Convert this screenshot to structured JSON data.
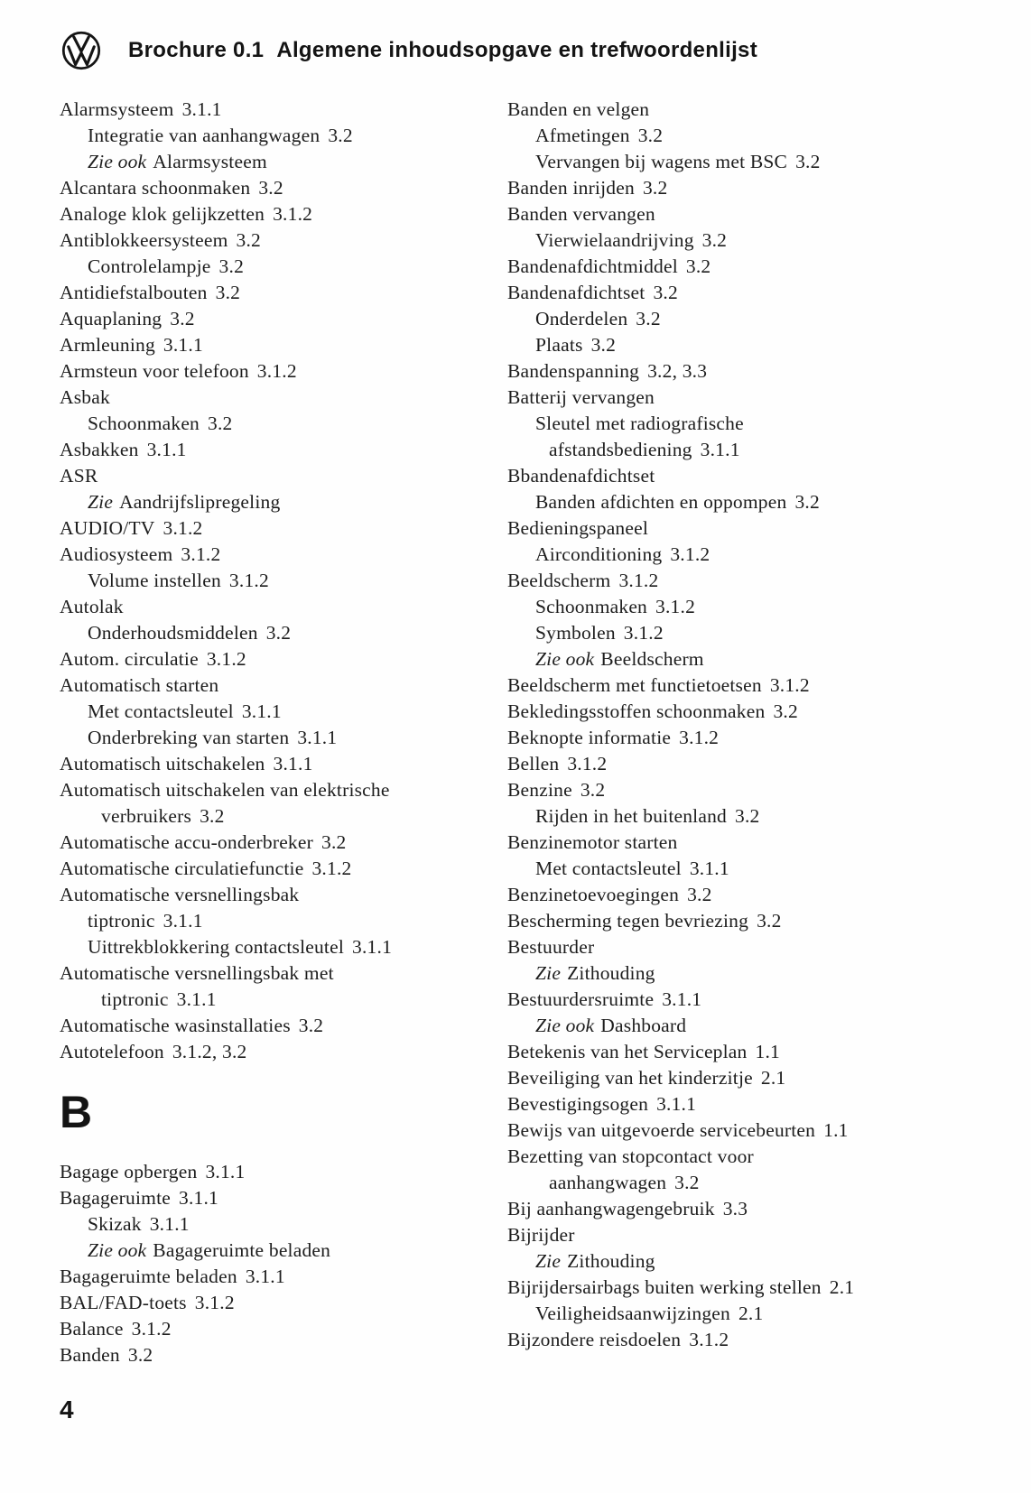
{
  "header": {
    "brochure_label": "Brochure 0.1",
    "title": "Algemene inhoudsopgave en trefwoordenlijst"
  },
  "page_number": "4",
  "index": {
    "columns": [
      {
        "lines": [
          {
            "text": "Alarmsysteem",
            "ref": "3.1.1",
            "indent": 0
          },
          {
            "text": "Integratie van aanhangwagen",
            "ref": "3.2",
            "indent": 1
          },
          {
            "prefix": "Zie ook",
            "text": "Alarmsysteem",
            "indent": 1
          },
          {
            "text": "Alcantara schoonmaken",
            "ref": "3.2",
            "indent": 0
          },
          {
            "text": "Analoge klok gelijkzetten",
            "ref": "3.1.2",
            "indent": 0
          },
          {
            "text": "Antiblokkeersysteem",
            "ref": "3.2",
            "indent": 0
          },
          {
            "text": "Controlelampje",
            "ref": "3.2",
            "indent": 1
          },
          {
            "text": "Antidiefstalbouten",
            "ref": "3.2",
            "indent": 0
          },
          {
            "text": "Aquaplaning",
            "ref": "3.2",
            "indent": 0
          },
          {
            "text": "Armleuning",
            "ref": "3.1.1",
            "indent": 0
          },
          {
            "text": "Armsteun voor telefoon",
            "ref": "3.1.2",
            "indent": 0
          },
          {
            "text": "Asbak",
            "indent": 0
          },
          {
            "text": "Schoonmaken",
            "ref": "3.2",
            "indent": 1
          },
          {
            "text": "Asbakken",
            "ref": "3.1.1",
            "indent": 0
          },
          {
            "text": "ASR",
            "indent": 0
          },
          {
            "prefix": "Zie",
            "text": "Aandrijfslipregeling",
            "indent": 1
          },
          {
            "text": "AUDIO/TV",
            "ref": "3.1.2",
            "indent": 0
          },
          {
            "text": "Audiosysteem",
            "ref": "3.1.2",
            "indent": 0
          },
          {
            "text": "Volume instellen",
            "ref": "3.1.2",
            "indent": 1
          },
          {
            "text": "Autolak",
            "indent": 0
          },
          {
            "text": "Onderhoudsmiddelen",
            "ref": "3.2",
            "indent": 1
          },
          {
            "text": "Autom. circulatie",
            "ref": "3.1.2",
            "indent": 0
          },
          {
            "text": "Automatisch starten",
            "indent": 0
          },
          {
            "text": "Met contactsleutel",
            "ref": "3.1.1",
            "indent": 1
          },
          {
            "text": "Onderbreking van starten",
            "ref": "3.1.1",
            "indent": 1
          },
          {
            "text": "Automatisch uitschakelen",
            "ref": "3.1.1",
            "indent": 0
          },
          {
            "text": "Automatisch uitschakelen van elektrische",
            "indent": 0
          },
          {
            "text": "verbruikers",
            "ref": "3.2",
            "indent": 2
          },
          {
            "text": "Automatische accu-onderbreker",
            "ref": "3.2",
            "indent": 0
          },
          {
            "text": "Automatische circulatiefunctie",
            "ref": "3.1.2",
            "indent": 0
          },
          {
            "text": "Automatische versnellingsbak",
            "indent": 0
          },
          {
            "text": "tiptronic",
            "ref": "3.1.1",
            "indent": 1
          },
          {
            "text": "Uittrekblokkering contactsleutel",
            "ref": "3.1.1",
            "indent": 1
          },
          {
            "text": "Automatische versnellingsbak met",
            "indent": 0
          },
          {
            "text": "tiptronic",
            "ref": "3.1.1",
            "indent": 2
          },
          {
            "text": "Automatische wasinstallaties",
            "ref": "3.2",
            "indent": 0
          },
          {
            "text": "Autotelefoon",
            "ref": "3.1.2, 3.2",
            "indent": 0
          },
          {
            "section": "B"
          },
          {
            "text": "Bagage opbergen",
            "ref": "3.1.1",
            "indent": 0
          },
          {
            "text": "Bagageruimte",
            "ref": "3.1.1",
            "indent": 0
          },
          {
            "text": "Skizak",
            "ref": "3.1.1",
            "indent": 1
          },
          {
            "prefix": "Zie ook",
            "text": "Bagageruimte beladen",
            "indent": 1
          },
          {
            "text": "Bagageruimte beladen",
            "ref": "3.1.1",
            "indent": 0
          },
          {
            "text": "BAL/FAD-toets",
            "ref": "3.1.2",
            "indent": 0
          },
          {
            "text": "Balance",
            "ref": "3.1.2",
            "indent": 0
          },
          {
            "text": "Banden",
            "ref": "3.2",
            "indent": 0
          }
        ]
      },
      {
        "lines": [
          {
            "text": "Banden en velgen",
            "indent": 0
          },
          {
            "text": "Afmetingen",
            "ref": "3.2",
            "indent": 1
          },
          {
            "text": "Vervangen bij wagens met BSC",
            "ref": "3.2",
            "indent": 1
          },
          {
            "text": "Banden inrijden",
            "ref": "3.2",
            "indent": 0
          },
          {
            "text": "Banden vervangen",
            "indent": 0
          },
          {
            "text": "Vierwielaandrijving",
            "ref": "3.2",
            "indent": 1
          },
          {
            "text": "Bandenafdichtmiddel",
            "ref": "3.2",
            "indent": 0
          },
          {
            "text": "Bandenafdichtset",
            "ref": "3.2",
            "indent": 0
          },
          {
            "text": "Onderdelen",
            "ref": "3.2",
            "indent": 1
          },
          {
            "text": "Plaats",
            "ref": "3.2",
            "indent": 1
          },
          {
            "text": "Bandenspanning",
            "ref": "3.2, 3.3",
            "indent": 0
          },
          {
            "text": "Batterij vervangen",
            "indent": 0
          },
          {
            "text": "Sleutel met radiografische",
            "indent": 1
          },
          {
            "text": "afstandsbediening",
            "ref": "3.1.1",
            "indent": 2
          },
          {
            "text": "Bbandenafdichtset",
            "indent": 0
          },
          {
            "text": "Banden afdichten en oppompen",
            "ref": "3.2",
            "indent": 1
          },
          {
            "text": "Bedieningspaneel",
            "indent": 0
          },
          {
            "text": "Airconditioning",
            "ref": "3.1.2",
            "indent": 1
          },
          {
            "text": "Beeldscherm",
            "ref": "3.1.2",
            "indent": 0
          },
          {
            "text": "Schoonmaken",
            "ref": "3.1.2",
            "indent": 1
          },
          {
            "text": "Symbolen",
            "ref": "3.1.2",
            "indent": 1
          },
          {
            "prefix": "Zie ook",
            "text": "Beeldscherm",
            "indent": 1
          },
          {
            "text": "Beeldscherm met functietoetsen",
            "ref": "3.1.2",
            "indent": 0
          },
          {
            "text": "Bekledingsstoffen schoonmaken",
            "ref": "3.2",
            "indent": 0
          },
          {
            "text": "Beknopte informatie",
            "ref": "3.1.2",
            "indent": 0
          },
          {
            "text": "Bellen",
            "ref": "3.1.2",
            "indent": 0
          },
          {
            "text": "Benzine",
            "ref": "3.2",
            "indent": 0
          },
          {
            "text": "Rijden in het buitenland",
            "ref": "3.2",
            "indent": 1
          },
          {
            "text": "Benzinemotor starten",
            "indent": 0
          },
          {
            "text": "Met contactsleutel",
            "ref": "3.1.1",
            "indent": 1
          },
          {
            "text": "Benzinetoevoegingen",
            "ref": "3.2",
            "indent": 0
          },
          {
            "text": "Bescherming tegen bevriezing",
            "ref": "3.2",
            "indent": 0
          },
          {
            "text": "Bestuurder",
            "indent": 0
          },
          {
            "prefix": "Zie",
            "text": "Zithouding",
            "indent": 1
          },
          {
            "text": "Bestuurdersruimte",
            "ref": "3.1.1",
            "indent": 0
          },
          {
            "prefix": "Zie ook",
            "text": "Dashboard",
            "indent": 1
          },
          {
            "text": "Betekenis van het Serviceplan",
            "ref": "1.1",
            "indent": 0
          },
          {
            "text": "Beveiliging van het kinderzitje",
            "ref": "2.1",
            "indent": 0
          },
          {
            "text": "Bevestigingsogen",
            "ref": "3.1.1",
            "indent": 0
          },
          {
            "text": "Bewijs van uitgevoerde servicebeurten",
            "ref": "1.1",
            "indent": 0
          },
          {
            "text": "Bezetting van stopcontact voor",
            "indent": 0
          },
          {
            "text": "aanhangwagen",
            "ref": "3.2",
            "indent": 2
          },
          {
            "text": "Bij aanhangwagengebruik",
            "ref": "3.3",
            "indent": 0
          },
          {
            "text": "Bijrijder",
            "indent": 0
          },
          {
            "prefix": "Zie",
            "text": "Zithouding",
            "indent": 1
          },
          {
            "text": "Bijrijdersairbags buiten werking stellen",
            "ref": "2.1",
            "indent": 0
          },
          {
            "text": "Veiligheidsaanwijzingen",
            "ref": "2.1",
            "indent": 1
          },
          {
            "text": "Bijzondere reisdoelen",
            "ref": "3.1.2",
            "indent": 0
          }
        ]
      }
    ]
  }
}
